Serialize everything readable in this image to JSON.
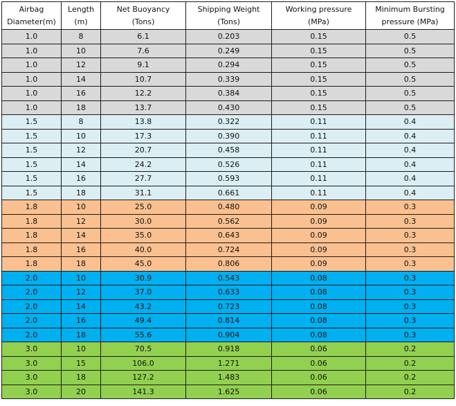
{
  "columns": [
    {
      "line1": "Airbag",
      "line2": "Diameter(m)"
    },
    {
      "line1": "Length",
      "line2": "(m)"
    },
    {
      "line1": "Net Buoyancy",
      "line2": "(Tons)"
    },
    {
      "line1": "Shipping Weight",
      "line2": "(Tons)"
    },
    {
      "line1": "Working pressure",
      "line2": "(MPa)"
    },
    {
      "line1": "Minimum Bursting",
      "line2": "pressure (MPa)"
    }
  ],
  "group_colors": {
    "g-1": "#d9d9d9",
    "g-2": "#dbeef3",
    "g-3": "#fac090",
    "g-4": "#00b0f0",
    "g-5": "#92d050"
  },
  "rows": [
    {
      "group": "g-1",
      "cells": [
        "1.0",
        "8",
        "6.1",
        "0.203",
        "0.15",
        "0.5"
      ]
    },
    {
      "group": "g-1",
      "cells": [
        "1.0",
        "10",
        "7.6",
        "0.249",
        "0.15",
        "0.5"
      ]
    },
    {
      "group": "g-1",
      "cells": [
        "1.0",
        "12",
        "9.1",
        "0.294",
        "0.15",
        "0.5"
      ]
    },
    {
      "group": "g-1",
      "cells": [
        "1.0",
        "14",
        "10.7",
        "0.339",
        "0.15",
        "0.5"
      ]
    },
    {
      "group": "g-1",
      "cells": [
        "1.0",
        "16",
        "12.2",
        "0.384",
        "0.15",
        "0.5"
      ]
    },
    {
      "group": "g-1",
      "cells": [
        "1.0",
        "18",
        "13.7",
        "0.430",
        "0.15",
        "0.5"
      ]
    },
    {
      "group": "g-2",
      "cells": [
        "1.5",
        "8",
        "13.8",
        "0.322",
        "0.11",
        "0.4"
      ]
    },
    {
      "group": "g-2",
      "cells": [
        "1.5",
        "10",
        "17.3",
        "0.390",
        "0.11",
        "0.4"
      ]
    },
    {
      "group": "g-2",
      "cells": [
        "1.5",
        "12",
        "20.7",
        "0.458",
        "0.11",
        "0.4"
      ]
    },
    {
      "group": "g-2",
      "cells": [
        "1.5",
        "14",
        "24.2",
        "0.526",
        "0.11",
        "0.4"
      ]
    },
    {
      "group": "g-2",
      "cells": [
        "1.5",
        "16",
        "27.7",
        "0.593",
        "0.11",
        "0.4"
      ]
    },
    {
      "group": "g-2",
      "cells": [
        "1.5",
        "18",
        "31.1",
        "0.661",
        "0.11",
        "0.4"
      ]
    },
    {
      "group": "g-3",
      "cells": [
        "1.8",
        "10",
        "25.0",
        "0.480",
        "0.09",
        "0.3"
      ]
    },
    {
      "group": "g-3",
      "cells": [
        "1.8",
        "12",
        "30.0",
        "0.562",
        "0.09",
        "0.3"
      ]
    },
    {
      "group": "g-3",
      "cells": [
        "1.8",
        "14",
        "35.0",
        "0.643",
        "0.09",
        "0.3"
      ]
    },
    {
      "group": "g-3",
      "cells": [
        "1.8",
        "16",
        "40.0",
        "0.724",
        "0.09",
        "0.3"
      ]
    },
    {
      "group": "g-3",
      "cells": [
        "1.8",
        "18",
        "45.0",
        "0.806",
        "0.09",
        "0.3"
      ]
    },
    {
      "group": "g-4",
      "cells": [
        "2.0",
        "10",
        "30.9",
        "0.543",
        "0.08",
        "0.3"
      ]
    },
    {
      "group": "g-4",
      "cells": [
        "2.0",
        "12",
        "37.0",
        "0.633",
        "0.08",
        "0.3"
      ]
    },
    {
      "group": "g-4",
      "cells": [
        "2.0",
        "14",
        "43.2",
        "0.723",
        "0.08",
        "0.3"
      ]
    },
    {
      "group": "g-4",
      "cells": [
        "2.0",
        "16",
        "49.4",
        "0.814",
        "0.08",
        "0.3"
      ]
    },
    {
      "group": "g-4",
      "cells": [
        "2.0",
        "18",
        "55.6",
        "0.904",
        "0.08",
        "0.3"
      ]
    },
    {
      "group": "g-5",
      "cells": [
        "3.0",
        "10",
        "70.5",
        "0.918",
        "0.06",
        "0.2"
      ]
    },
    {
      "group": "g-5",
      "cells": [
        "3.0",
        "15",
        "106.0",
        "1.271",
        "0.06",
        "0.2"
      ]
    },
    {
      "group": "g-5",
      "cells": [
        "3.0",
        "18",
        "127.2",
        "1.483",
        "0.06",
        "0.2"
      ]
    },
    {
      "group": "g-5",
      "cells": [
        "3.0",
        "20",
        "141.3",
        "1.625",
        "0.06",
        "0.2"
      ]
    }
  ]
}
